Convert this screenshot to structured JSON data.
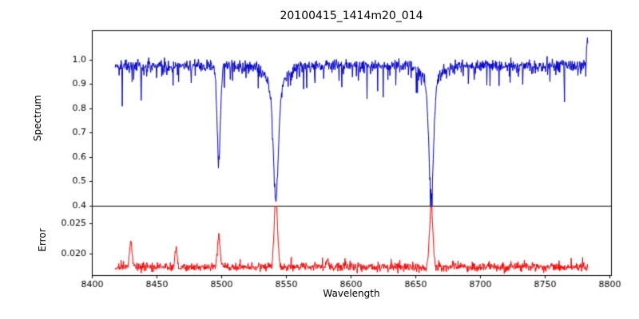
{
  "title": "20100415_1414m20_014",
  "xlabel": "Wavelength",
  "seed": 20100415,
  "xlim": [
    8400,
    8801
  ],
  "xticks": [
    8400,
    8450,
    8500,
    8550,
    8600,
    8650,
    8700,
    8750,
    8800
  ],
  "x_sampling": {
    "start": 8418,
    "end": 8783,
    "points": 1200
  },
  "chart_data": [
    {
      "type": "line",
      "name": "spectrum",
      "ylabel": "Spectrum",
      "color": "#0000cd",
      "ylim": [
        0.4,
        1.12
      ],
      "yticks": [
        0.4,
        0.5,
        0.6,
        0.7,
        0.8,
        0.9,
        1.0
      ],
      "ytick_decimals": 1,
      "baseline": 0.975,
      "noise_sigma": 0.012,
      "dip_threshold": 1.1,
      "dip_scale": 0.07,
      "features": [
        {
          "center": 8498.0,
          "depth": 0.4,
          "sigma": 1.3
        },
        {
          "center": 8542.1,
          "depth": 0.45,
          "sigma": 1.9
        },
        {
          "center": 8542.1,
          "depth": 0.1,
          "sigma": 6.5
        },
        {
          "center": 8662.1,
          "depth": 0.45,
          "sigma": 1.8
        },
        {
          "center": 8662.1,
          "depth": 0.08,
          "sigma": 6.0
        },
        {
          "center": 8783.0,
          "depth": -0.1,
          "sigma": 1.2
        }
      ]
    },
    {
      "type": "line",
      "name": "error",
      "ylabel": "Error",
      "color": "#ff0000",
      "ylim": [
        0.0165,
        0.0278
      ],
      "yticks": [
        0.02,
        0.025
      ],
      "ytick_decimals": 3,
      "baseline": 0.0178,
      "noise_sigma": 0.00035,
      "spike_threshold": 1.6,
      "spike_scale": 0.0012,
      "features": [
        {
          "center": 8430.0,
          "height": 0.0042,
          "sigma": 1.0
        },
        {
          "center": 8465.0,
          "height": 0.003,
          "sigma": 0.9
        },
        {
          "center": 8498.0,
          "height": 0.0048,
          "sigma": 1.0
        },
        {
          "center": 8542.1,
          "height": 0.0108,
          "sigma": 1.3
        },
        {
          "center": 8582.0,
          "height": 0.0013,
          "sigma": 0.8
        },
        {
          "center": 8662.1,
          "height": 0.01,
          "sigma": 1.3
        }
      ]
    }
  ]
}
